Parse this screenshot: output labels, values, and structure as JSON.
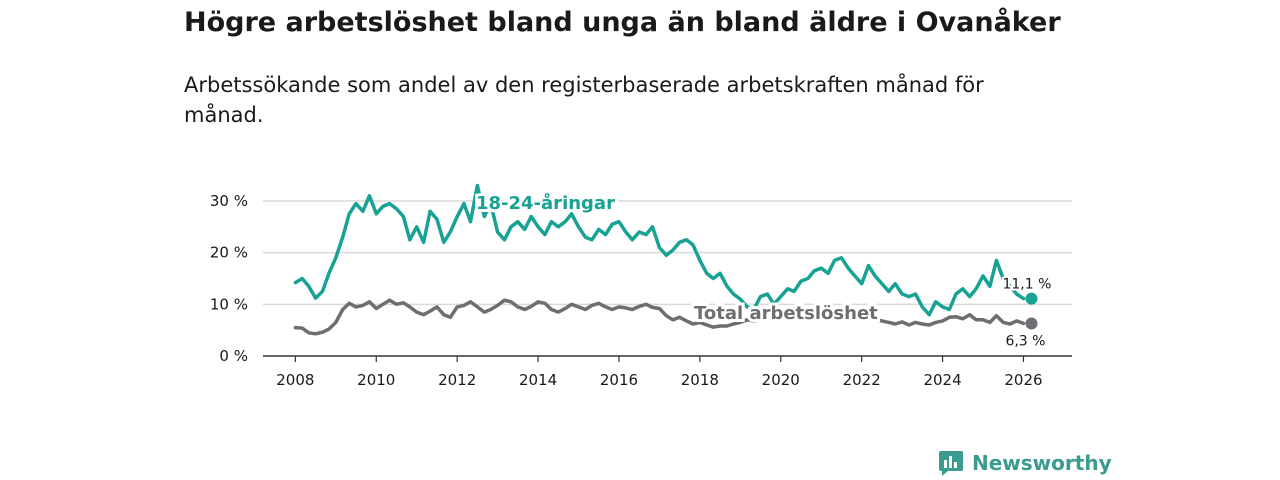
{
  "brand": {
    "name": "Newsworthy",
    "color": "#3a9b8e"
  },
  "chart_data": {
    "type": "line",
    "title": "Högre arbetslöshet bland unga än bland äldre i Ovanåker",
    "subtitle": "Arbetssökande som andel av den registerbaserade arbetskraften månad för månad.",
    "xlabel": "",
    "ylabel": "",
    "xlim": [
      2007.2,
      2027.2
    ],
    "ylim": [
      0,
      33
    ],
    "x_ticks": [
      2008,
      2010,
      2012,
      2014,
      2016,
      2018,
      2020,
      2022,
      2024,
      2026
    ],
    "y_ticks": [
      0,
      10,
      20,
      30
    ],
    "y_tick_labels": [
      "0 %",
      "10 %",
      "20 %",
      "30 %"
    ],
    "grid": true,
    "series": [
      {
        "name": "18-24-åringar",
        "color": "#17a293",
        "label_pos": "top",
        "end_label": "11,1 %",
        "points": [
          [
            2008.0,
            14.2
          ],
          [
            2008.17,
            15.0
          ],
          [
            2008.33,
            13.5
          ],
          [
            2008.5,
            11.2
          ],
          [
            2008.67,
            12.5
          ],
          [
            2008.83,
            16.0
          ],
          [
            2009.0,
            19.0
          ],
          [
            2009.17,
            23.0
          ],
          [
            2009.33,
            27.5
          ],
          [
            2009.5,
            29.5
          ],
          [
            2009.67,
            28.0
          ],
          [
            2009.83,
            31.0
          ],
          [
            2010.0,
            27.5
          ],
          [
            2010.17,
            29.0
          ],
          [
            2010.33,
            29.5
          ],
          [
            2010.5,
            28.5
          ],
          [
            2010.67,
            27.0
          ],
          [
            2010.83,
            22.5
          ],
          [
            2011.0,
            25.0
          ],
          [
            2011.17,
            22.0
          ],
          [
            2011.33,
            28.0
          ],
          [
            2011.5,
            26.5
          ],
          [
            2011.67,
            22.0
          ],
          [
            2011.83,
            24.0
          ],
          [
            2012.0,
            27.0
          ],
          [
            2012.17,
            29.5
          ],
          [
            2012.33,
            26.0
          ],
          [
            2012.5,
            33.0
          ],
          [
            2012.67,
            27.0
          ],
          [
            2012.83,
            29.5
          ],
          [
            2013.0,
            24.0
          ],
          [
            2013.17,
            22.5
          ],
          [
            2013.33,
            25.0
          ],
          [
            2013.5,
            26.0
          ],
          [
            2013.67,
            24.5
          ],
          [
            2013.83,
            27.0
          ],
          [
            2014.0,
            25.0
          ],
          [
            2014.17,
            23.5
          ],
          [
            2014.33,
            26.0
          ],
          [
            2014.5,
            25.0
          ],
          [
            2014.67,
            26.0
          ],
          [
            2014.83,
            27.5
          ],
          [
            2015.0,
            25.0
          ],
          [
            2015.17,
            23.0
          ],
          [
            2015.33,
            22.5
          ],
          [
            2015.5,
            24.5
          ],
          [
            2015.67,
            23.5
          ],
          [
            2015.83,
            25.5
          ],
          [
            2016.0,
            26.0
          ],
          [
            2016.17,
            24.0
          ],
          [
            2016.33,
            22.5
          ],
          [
            2016.5,
            24.0
          ],
          [
            2016.67,
            23.5
          ],
          [
            2016.83,
            25.0
          ],
          [
            2017.0,
            21.0
          ],
          [
            2017.17,
            19.5
          ],
          [
            2017.33,
            20.5
          ],
          [
            2017.5,
            22.0
          ],
          [
            2017.67,
            22.5
          ],
          [
            2017.83,
            21.5
          ],
          [
            2018.0,
            18.5
          ],
          [
            2018.17,
            16.0
          ],
          [
            2018.33,
            15.0
          ],
          [
            2018.5,
            16.0
          ],
          [
            2018.67,
            13.5
          ],
          [
            2018.83,
            12.0
          ],
          [
            2019.0,
            11.0
          ],
          [
            2019.17,
            9.5
          ],
          [
            2019.33,
            9.0
          ],
          [
            2019.5,
            11.5
          ],
          [
            2019.67,
            12.0
          ],
          [
            2019.83,
            10.0
          ],
          [
            2020.0,
            11.5
          ],
          [
            2020.17,
            13.0
          ],
          [
            2020.33,
            12.5
          ],
          [
            2020.5,
            14.5
          ],
          [
            2020.67,
            15.0
          ],
          [
            2020.83,
            16.5
          ],
          [
            2021.0,
            17.0
          ],
          [
            2021.17,
            16.0
          ],
          [
            2021.33,
            18.5
          ],
          [
            2021.5,
            19.0
          ],
          [
            2021.67,
            17.0
          ],
          [
            2021.83,
            15.5
          ],
          [
            2022.0,
            14.0
          ],
          [
            2022.17,
            17.5
          ],
          [
            2022.33,
            15.5
          ],
          [
            2022.5,
            14.0
          ],
          [
            2022.67,
            12.5
          ],
          [
            2022.83,
            14.0
          ],
          [
            2023.0,
            12.0
          ],
          [
            2023.17,
            11.5
          ],
          [
            2023.33,
            12.0
          ],
          [
            2023.5,
            9.5
          ],
          [
            2023.67,
            8.0
          ],
          [
            2023.83,
            10.5
          ],
          [
            2024.0,
            9.5
          ],
          [
            2024.17,
            9.0
          ],
          [
            2024.33,
            12.0
          ],
          [
            2024.5,
            13.0
          ],
          [
            2024.67,
            11.5
          ],
          [
            2024.83,
            13.0
          ],
          [
            2025.0,
            15.5
          ],
          [
            2025.17,
            13.5
          ],
          [
            2025.33,
            18.5
          ],
          [
            2025.5,
            15.0
          ],
          [
            2025.67,
            13.5
          ],
          [
            2025.83,
            12.0
          ],
          [
            2026.0,
            11.1
          ]
        ]
      },
      {
        "name": "Total arbetslöshet",
        "color": "#6e6e72",
        "label_pos": "bottom",
        "end_label": "6,3 %",
        "points": [
          [
            2008.0,
            5.5
          ],
          [
            2008.17,
            5.4
          ],
          [
            2008.33,
            4.5
          ],
          [
            2008.5,
            4.3
          ],
          [
            2008.67,
            4.6
          ],
          [
            2008.83,
            5.2
          ],
          [
            2009.0,
            6.5
          ],
          [
            2009.17,
            9.0
          ],
          [
            2009.33,
            10.2
          ],
          [
            2009.5,
            9.5
          ],
          [
            2009.67,
            9.8
          ],
          [
            2009.83,
            10.5
          ],
          [
            2010.0,
            9.2
          ],
          [
            2010.17,
            10.0
          ],
          [
            2010.33,
            10.8
          ],
          [
            2010.5,
            10.0
          ],
          [
            2010.67,
            10.3
          ],
          [
            2010.83,
            9.5
          ],
          [
            2011.0,
            8.5
          ],
          [
            2011.17,
            8.0
          ],
          [
            2011.33,
            8.7
          ],
          [
            2011.5,
            9.5
          ],
          [
            2011.67,
            8.0
          ],
          [
            2011.83,
            7.5
          ],
          [
            2012.0,
            9.5
          ],
          [
            2012.17,
            9.8
          ],
          [
            2012.33,
            10.5
          ],
          [
            2012.5,
            9.5
          ],
          [
            2012.67,
            8.5
          ],
          [
            2012.83,
            9.0
          ],
          [
            2013.0,
            9.8
          ],
          [
            2013.17,
            10.8
          ],
          [
            2013.33,
            10.5
          ],
          [
            2013.5,
            9.5
          ],
          [
            2013.67,
            9.0
          ],
          [
            2013.83,
            9.6
          ],
          [
            2014.0,
            10.5
          ],
          [
            2014.17,
            10.2
          ],
          [
            2014.33,
            9.0
          ],
          [
            2014.5,
            8.5
          ],
          [
            2014.67,
            9.2
          ],
          [
            2014.83,
            10.0
          ],
          [
            2015.0,
            9.5
          ],
          [
            2015.17,
            9.0
          ],
          [
            2015.33,
            9.8
          ],
          [
            2015.5,
            10.2
          ],
          [
            2015.67,
            9.5
          ],
          [
            2015.83,
            9.0
          ],
          [
            2016.0,
            9.5
          ],
          [
            2016.17,
            9.3
          ],
          [
            2016.33,
            9.0
          ],
          [
            2016.5,
            9.6
          ],
          [
            2016.67,
            10.0
          ],
          [
            2016.83,
            9.4
          ],
          [
            2017.0,
            9.2
          ],
          [
            2017.17,
            7.8
          ],
          [
            2017.33,
            7.0
          ],
          [
            2017.5,
            7.5
          ],
          [
            2017.67,
            6.8
          ],
          [
            2017.83,
            6.2
          ],
          [
            2018.0,
            6.5
          ],
          [
            2018.17,
            6.0
          ],
          [
            2018.33,
            5.6
          ],
          [
            2018.5,
            5.8
          ],
          [
            2018.67,
            5.8
          ],
          [
            2018.83,
            6.2
          ],
          [
            2019.0,
            6.5
          ],
          [
            2019.17,
            7.0
          ],
          [
            2019.33,
            6.8
          ],
          [
            2019.5,
            7.0
          ],
          [
            2019.67,
            7.3
          ],
          [
            2019.83,
            7.0
          ],
          [
            2020.0,
            7.6
          ],
          [
            2020.17,
            8.4
          ],
          [
            2020.33,
            8.0
          ],
          [
            2020.5,
            8.8
          ],
          [
            2020.67,
            8.2
          ],
          [
            2020.83,
            7.8
          ],
          [
            2021.0,
            8.3
          ],
          [
            2021.17,
            8.0
          ],
          [
            2021.33,
            7.6
          ],
          [
            2021.5,
            8.0
          ],
          [
            2021.67,
            7.5
          ],
          [
            2021.83,
            7.2
          ],
          [
            2022.0,
            7.0
          ],
          [
            2022.17,
            7.5
          ],
          [
            2022.33,
            7.0
          ],
          [
            2022.5,
            6.8
          ],
          [
            2022.67,
            6.5
          ],
          [
            2022.83,
            6.2
          ],
          [
            2023.0,
            6.6
          ],
          [
            2023.17,
            6.0
          ],
          [
            2023.33,
            6.5
          ],
          [
            2023.5,
            6.2
          ],
          [
            2023.67,
            6.0
          ],
          [
            2023.83,
            6.5
          ],
          [
            2024.0,
            6.8
          ],
          [
            2024.17,
            7.5
          ],
          [
            2024.33,
            7.6
          ],
          [
            2024.5,
            7.2
          ],
          [
            2024.67,
            8.0
          ],
          [
            2024.83,
            7.0
          ],
          [
            2025.0,
            7.0
          ],
          [
            2025.17,
            6.5
          ],
          [
            2025.33,
            7.8
          ],
          [
            2025.5,
            6.5
          ],
          [
            2025.67,
            6.2
          ],
          [
            2025.83,
            6.8
          ],
          [
            2026.0,
            6.3
          ]
        ]
      }
    ]
  }
}
